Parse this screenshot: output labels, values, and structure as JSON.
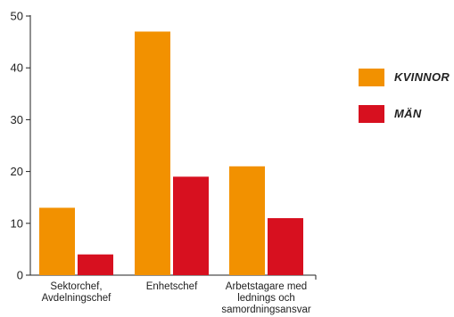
{
  "chart_data": {
    "type": "bar",
    "categories": [
      [
        "Sektorchef,",
        "Avdelningschef"
      ],
      [
        "Enhetschef"
      ],
      [
        "Arbetstagare med",
        "lednings och",
        "samordningsansvar"
      ]
    ],
    "series": [
      {
        "name": "KVINNOR",
        "color": "#F29100",
        "values": [
          13,
          47,
          21
        ]
      },
      {
        "name": "MÄN",
        "color": "#D7101F",
        "values": [
          4,
          19,
          11
        ]
      }
    ],
    "ylim": [
      0,
      50
    ],
    "yticks": [
      "0",
      "10",
      "20",
      "30",
      "40",
      "50"
    ],
    "legend_position": "right",
    "grid": false
  }
}
